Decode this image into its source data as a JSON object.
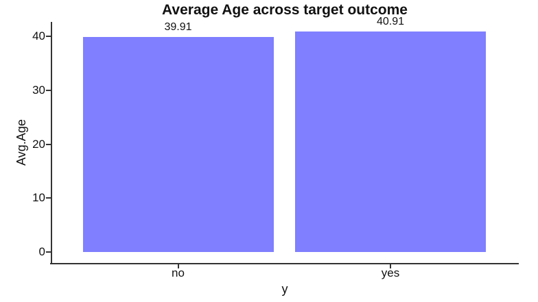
{
  "chart_data": {
    "type": "bar",
    "title": "Average Age across target outcome",
    "categories": [
      "no",
      "yes"
    ],
    "values": [
      39.91,
      40.91
    ],
    "value_labels": [
      "39.91",
      "40.91"
    ],
    "xlabel": "y",
    "ylabel": "Avg.Age",
    "yticks": [
      0,
      10,
      20,
      30,
      40
    ],
    "ylim": [
      0,
      42.7
    ],
    "grid": false,
    "legend": "none",
    "bar_color": "#7f7fff",
    "axis_color": "#333333",
    "text_color": "#111111",
    "background_color": "#ffffff"
  }
}
